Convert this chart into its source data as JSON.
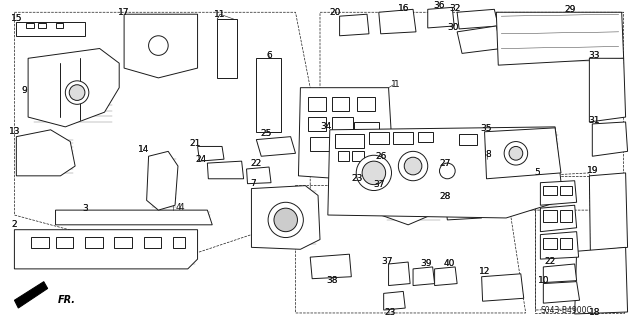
{
  "background_color": "#ffffff",
  "diagram_code": "S043-B4900C",
  "line_color": "#1a1a1a",
  "gray_color": "#888888",
  "label_fontsize": 6.5,
  "lw_main": 0.7,
  "lw_thin": 0.35,
  "lw_dashed": 0.5,
  "fig_w": 6.4,
  "fig_h": 3.19,
  "dpi": 100
}
